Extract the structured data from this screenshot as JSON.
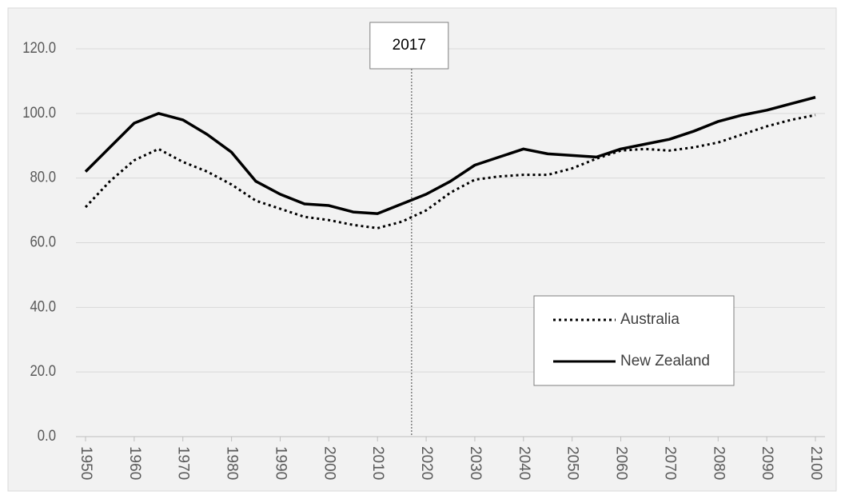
{
  "chart_data": {
    "type": "line",
    "x": [
      1950,
      1955,
      1960,
      1965,
      1970,
      1975,
      1980,
      1985,
      1990,
      1995,
      2000,
      2005,
      2010,
      2015,
      2020,
      2025,
      2030,
      2035,
      2040,
      2045,
      2050,
      2055,
      2060,
      2065,
      2070,
      2075,
      2080,
      2085,
      2090,
      2095,
      2100
    ],
    "series": [
      {
        "name": "Australia",
        "color": "#000000",
        "dash": "dotted",
        "values": [
          71,
          79,
          85.5,
          89,
          85,
          82,
          78,
          73,
          70.5,
          68,
          67,
          65.5,
          64.5,
          66.5,
          70,
          75.5,
          79.5,
          80.5,
          81,
          81,
          83,
          86,
          88.5,
          89,
          88.5,
          89.5,
          91,
          93.5,
          96,
          98,
          99.5
        ]
      },
      {
        "name": "New Zealand",
        "color": "#000000",
        "dash": "solid",
        "values": [
          82,
          89.5,
          97,
          100,
          98,
          93.5,
          88,
          79,
          75,
          72,
          71.5,
          69.5,
          69,
          72,
          75,
          79,
          84,
          86.5,
          89,
          87.5,
          87,
          86.5,
          89,
          90.5,
          92,
          94.5,
          97.5,
          99.5,
          101,
          103,
          105
        ]
      }
    ],
    "xlim": [
      1950,
      2100
    ],
    "xticks": [
      1950,
      1960,
      1970,
      1980,
      1990,
      2000,
      2010,
      2020,
      2030,
      2040,
      2050,
      2060,
      2070,
      2080,
      2090,
      2100
    ],
    "ylim": [
      0,
      120
    ],
    "yticks": [
      {
        "value": 0,
        "label": "0.0"
      },
      {
        "value": 20,
        "label": "20.0"
      },
      {
        "value": 40,
        "label": "40.0"
      },
      {
        "value": 60,
        "label": "60.0"
      },
      {
        "value": 80,
        "label": "80.0"
      },
      {
        "value": 100,
        "label": "100.0"
      },
      {
        "value": 120,
        "label": "120.0"
      }
    ],
    "grid": true,
    "legend": "lower right",
    "annotation": {
      "label": "2017",
      "x": 2017
    }
  }
}
